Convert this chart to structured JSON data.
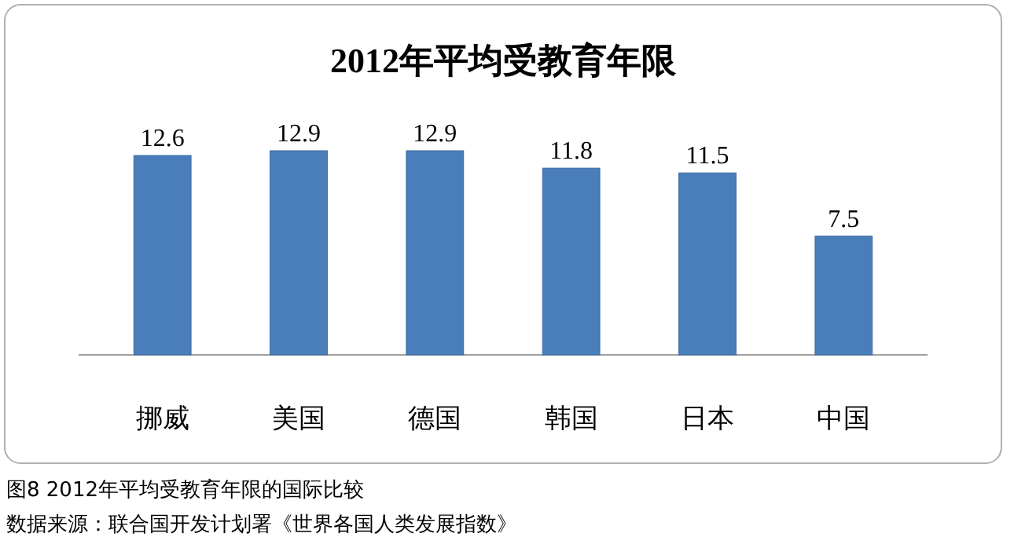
{
  "chart_data": {
    "type": "bar",
    "title": "2012年平均受教育年限",
    "categories": [
      "挪威",
      "美国",
      "德国",
      "韩国",
      "日本",
      "中国"
    ],
    "values": [
      12.6,
      12.9,
      12.9,
      11.8,
      11.5,
      7.5
    ],
    "color": "#4a7ebb",
    "data_labels": true,
    "annotations": [
      "图8  2012年平均受教育年限的国际比较",
      "数据来源：联合国开发计划署《世界各国人类发展指数》"
    ]
  }
}
